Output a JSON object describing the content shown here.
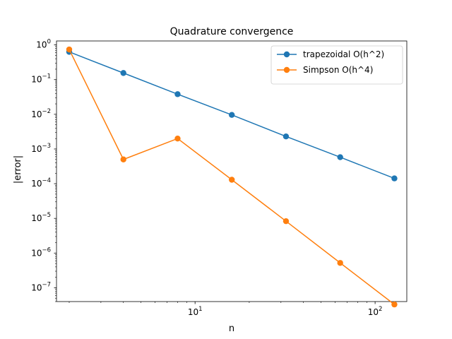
{
  "chart_data": {
    "type": "line",
    "title": "Quadrature convergence",
    "xlabel": "n",
    "ylabel": "|error|",
    "xscale": "log",
    "yscale": "log",
    "xlim": [
      1.7,
      150
    ],
    "ylim": [
      4e-08,
      1.3
    ],
    "grid": false,
    "legend_position": "top-right",
    "x_ticks": [
      {
        "value": 10,
        "base": "10",
        "exp": "1"
      },
      {
        "value": 100,
        "base": "10",
        "exp": "2"
      }
    ],
    "y_ticks": [
      {
        "value": 1,
        "base": "10",
        "exp": "0"
      },
      {
        "value": 0.1,
        "base": "10",
        "exp": "−1"
      },
      {
        "value": 0.01,
        "base": "10",
        "exp": "−2"
      },
      {
        "value": 0.001,
        "base": "10",
        "exp": "−3"
      },
      {
        "value": 0.0001,
        "base": "10",
        "exp": "−4"
      },
      {
        "value": 1e-05,
        "base": "10",
        "exp": "−5"
      },
      {
        "value": 1e-06,
        "base": "10",
        "exp": "−6"
      },
      {
        "value": 1e-07,
        "base": "10",
        "exp": "−7"
      }
    ],
    "series": [
      {
        "name": "trapezoidal O(h^2)",
        "color": "#1f77b4",
        "x": [
          2,
          4,
          8,
          16,
          32,
          64,
          128
        ],
        "y": [
          0.63,
          0.155,
          0.038,
          0.0096,
          0.0023,
          0.00058,
          0.000142
        ]
      },
      {
        "name": "Simpson O(h^4)",
        "color": "#ff7f0e",
        "x": [
          2,
          4,
          8,
          16,
          32,
          64,
          128
        ],
        "y": [
          0.74,
          0.0005,
          0.002,
          0.00013,
          8.3e-06,
          5.2e-07,
          3.3e-08
        ]
      }
    ]
  }
}
